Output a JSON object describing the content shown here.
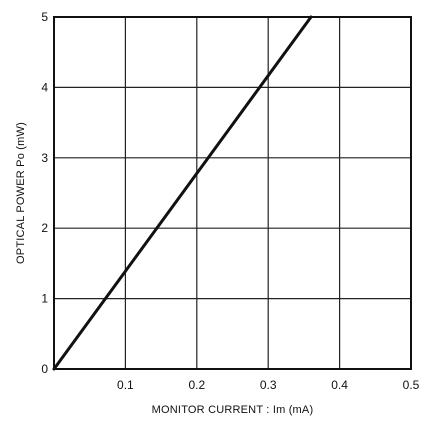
{
  "chart_data": {
    "type": "line",
    "xlabel": "MONITOR CURRENT : Im (mA)",
    "ylabel": "OPTICAL POWER Po (mW)",
    "xlim": [
      0,
      0.5
    ],
    "ylim": [
      0,
      5
    ],
    "x_ticks": [
      "0.1",
      "0.2",
      "0.3",
      "0.4",
      "0.5"
    ],
    "y_ticks": [
      "0",
      "1",
      "2",
      "3",
      "4",
      "5"
    ],
    "grid": true,
    "series": [
      {
        "x": [
          0,
          0.36
        ],
        "y": [
          0,
          5
        ]
      }
    ],
    "colors": {
      "line": "#111111",
      "grid": "#222222",
      "frame": "#111111"
    }
  }
}
